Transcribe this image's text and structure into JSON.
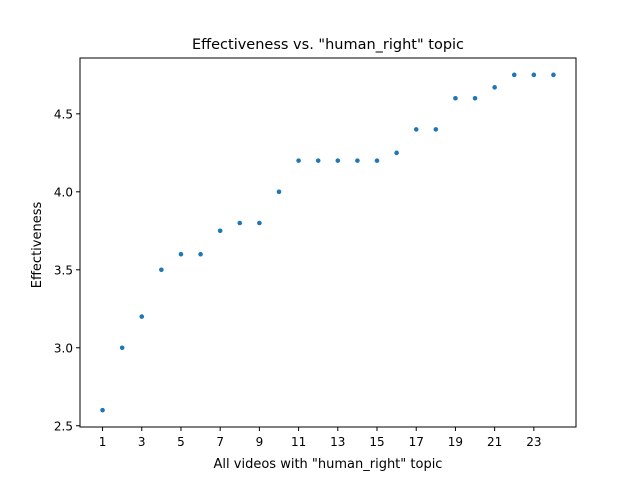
{
  "chart_data": {
    "type": "scatter",
    "title": "Effectiveness vs. \"human_right\" topic",
    "xlabel": "All videos with \"human_right\" topic",
    "ylabel": "Effectiveness",
    "x": [
      1,
      2,
      3,
      4,
      5,
      6,
      7,
      8,
      9,
      10,
      11,
      12,
      13,
      14,
      15,
      16,
      17,
      18,
      19,
      20,
      21,
      22,
      23,
      24
    ],
    "y": [
      2.6,
      3.0,
      3.2,
      3.5,
      3.6,
      3.6,
      3.75,
      3.8,
      3.8,
      4.0,
      4.2,
      4.2,
      4.2,
      4.2,
      4.2,
      4.25,
      4.4,
      4.4,
      4.6,
      4.6,
      4.67,
      4.75,
      4.75,
      4.75
    ],
    "xlim": [
      -0.15,
      25.15
    ],
    "ylim": [
      2.492,
      4.858
    ],
    "xticks": [
      1,
      3,
      5,
      7,
      9,
      11,
      13,
      15,
      17,
      19,
      21,
      23
    ],
    "yticks": [
      2.5,
      3.0,
      3.5,
      4.0,
      4.5
    ],
    "ytick_labels": [
      "2.5",
      "3.0",
      "3.5",
      "4.0",
      "4.5"
    ],
    "marker_color": "#1f77b4",
    "grid": false
  }
}
